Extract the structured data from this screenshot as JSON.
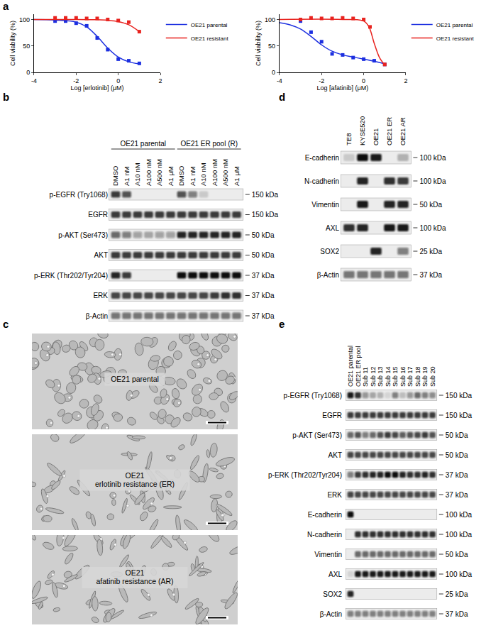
{
  "chart_data": [
    {
      "type": "scatter",
      "x_label": "Log [erlotinib] (μM)",
      "y_label": "Cell viability (%)",
      "xlim": [
        -4,
        2
      ],
      "xticks": [
        -4,
        -2,
        0,
        2
      ],
      "ylim": [
        0,
        110
      ],
      "yticks": [
        0,
        50,
        100
      ],
      "grid": false,
      "legend": "right",
      "marker": "square",
      "series": [
        {
          "name": "OE21 parental",
          "color": "#1c2fe0",
          "x": [
            -3,
            -2.5,
            -2,
            -1.5,
            -1,
            -0.5,
            0,
            0.5,
            1
          ],
          "values": [
            97,
            97,
            93,
            88,
            65,
            43,
            25,
            22,
            17
          ],
          "fit_x": [
            -4,
            -3,
            -2,
            -1.5,
            -1,
            -0.5,
            0,
            0.5,
            1
          ],
          "fit_values": [
            100,
            99,
            95,
            86,
            68,
            46,
            29,
            20,
            16
          ]
        },
        {
          "name": "OE21 resistant",
          "color": "#e8231f",
          "x": [
            -3,
            -2.5,
            -2,
            -1.5,
            -1,
            -0.5,
            0,
            0.5,
            1
          ],
          "values": [
            103,
            103,
            103,
            102,
            102,
            100,
            98,
            95,
            77
          ],
          "fit_x": [
            -4,
            -2,
            -1,
            -0.5,
            0,
            0.5,
            1
          ],
          "fit_values": [
            100,
            100,
            99.5,
            98.5,
            96,
            90,
            77
          ]
        }
      ]
    },
    {
      "type": "scatter",
      "x_label": "Log [afatinib] (μM)",
      "y_label": "Cell viability (%)",
      "xlim": [
        -4,
        2
      ],
      "xticks": [
        -4,
        -2,
        0,
        2
      ],
      "ylim": [
        0,
        110
      ],
      "yticks": [
        0,
        50,
        100
      ],
      "grid": false,
      "legend": "right",
      "marker": "square",
      "series": [
        {
          "name": "OE21 parental",
          "color": "#1c2fe0",
          "x": [
            -3,
            -2.5,
            -2,
            -1.5,
            -1,
            -0.5,
            0,
            0.5,
            1
          ],
          "values": [
            97,
            76,
            58,
            35,
            33,
            28,
            25,
            22,
            15
          ],
          "fit_x": [
            -4,
            -3.5,
            -3,
            -2.5,
            -2,
            -1.5,
            -1,
            -0.5,
            0,
            0.5,
            1
          ],
          "fit_values": [
            94,
            90,
            82,
            68,
            52,
            40,
            33,
            29,
            25,
            21,
            16
          ]
        },
        {
          "name": "OE21 resistant",
          "color": "#e8231f",
          "x": [
            -3,
            -2.5,
            -2,
            -1.5,
            -1,
            -0.5,
            0,
            0.3,
            1
          ],
          "values": [
            100,
            103,
            102,
            102,
            103,
            102,
            100,
            86,
            15
          ],
          "fit_x": [
            -4,
            -1,
            0,
            0.25,
            0.5,
            0.75,
            1
          ],
          "fit_values": [
            100,
            100,
            97,
            86,
            55,
            28,
            14
          ]
        }
      ]
    }
  ],
  "figure": {
    "panel_a": {
      "label": "a"
    },
    "panel_b": {
      "label": "b",
      "groups": [
        {
          "label": "OE21 parental",
          "lanes": [
            "DMSO",
            "A1 nM",
            "A10 nM",
            "A100 nM",
            "A500 nM",
            "A1 μM"
          ]
        },
        {
          "label": "OE21 ER pool (R)",
          "lanes": [
            "DMSO",
            "A1 nM",
            "A10 nM",
            "A100 nM",
            "A500 nM",
            "A1 μM"
          ]
        }
      ],
      "rows": [
        {
          "label": "p-EGFR (Try1068)",
          "kda": "150 kDa",
          "intensity": [
            0.8,
            0.7,
            0,
            0,
            0,
            0,
            0.7,
            0.5,
            0.15,
            0,
            0,
            0
          ]
        },
        {
          "label": "EGFR",
          "kda": "150 kDa",
          "intensity": [
            0.8,
            0.8,
            0.8,
            0.8,
            0.8,
            0.8,
            0.8,
            0.8,
            0.8,
            0.8,
            0.8,
            0.8
          ]
        },
        {
          "label": "p-AKT (Ser473)",
          "kda": "50 kDa",
          "intensity": [
            0.6,
            0.5,
            0.35,
            0.3,
            0.35,
            0.35,
            0.9,
            0.9,
            0.9,
            0.9,
            0.9,
            0.9
          ]
        },
        {
          "label": "AKT",
          "kda": "50 kDa",
          "intensity": [
            0.8,
            0.8,
            0.8,
            0.8,
            0.8,
            0.8,
            0.8,
            0.8,
            0.8,
            0.8,
            0.8,
            0.8
          ]
        },
        {
          "label": "p-ERK (Thr202/Tyr204)",
          "kda": "37 kDa",
          "intensity": [
            0.9,
            0.8,
            0,
            0,
            0,
            0,
            1,
            1,
            1,
            1,
            1,
            1
          ]
        },
        {
          "label": "ERK",
          "kda": "37 kDa",
          "intensity": [
            0.75,
            0.75,
            0.75,
            0.75,
            0.75,
            0.75,
            0.75,
            0.75,
            0.75,
            0.8,
            0.85,
            0.85
          ]
        },
        {
          "label": "β-Actin",
          "kda": "37 kDa",
          "intensity": [
            0.55,
            0.55,
            0.55,
            0.55,
            0.55,
            0.55,
            0.55,
            0.55,
            0.55,
            0.55,
            0.55,
            0.55
          ]
        }
      ]
    },
    "panel_c": {
      "label": "c",
      "images": [
        {
          "lines": [
            "OE21 parental"
          ]
        },
        {
          "lines": [
            "OE21",
            "erlotinib resistance (ER)"
          ]
        },
        {
          "lines": [
            "OE21",
            "afatinib resistance (AR)"
          ]
        }
      ]
    },
    "panel_d": {
      "label": "d",
      "lanes": [
        "TE8",
        "KYSE520",
        "OE21",
        "OE21 ER",
        "OE21 AR"
      ],
      "rows": [
        {
          "label": "E-cadherin",
          "kda": "100 kDa",
          "intensity": [
            0.15,
            1,
            0.95,
            0,
            0.25
          ]
        },
        {
          "label": "N-cadherin",
          "kda": "100 kDa",
          "intensity": [
            0,
            0.9,
            0,
            0.85,
            0.8
          ]
        },
        {
          "label": "Vimentin",
          "kda": "50 kDa",
          "intensity": [
            0,
            0.95,
            0,
            0.9,
            0.9
          ]
        },
        {
          "label": "AXL",
          "kda": "100 kDa",
          "intensity": [
            0.85,
            0.9,
            0,
            0.95,
            0.95
          ]
        },
        {
          "label": "SOX2",
          "kda": "25 kDa",
          "intensity": [
            0,
            0,
            0.9,
            0,
            0.5
          ]
        },
        {
          "label": "β-Actin",
          "kda": "37 kDa",
          "intensity": [
            0.55,
            0.55,
            0.55,
            0.55,
            0.55
          ]
        }
      ]
    },
    "panel_e": {
      "label": "e",
      "lanes": [
        "OE21 parental",
        "OE21 ER pool",
        "Sub 11",
        "Sub 12",
        "Sub 13",
        "Sub 14",
        "Sub 15",
        "Sub 16",
        "Sub 17",
        "Sub 18",
        "Sub 19",
        "Sub 20"
      ],
      "rows": [
        {
          "label": "p-EGFR (Try1068)",
          "kda": "150 kDa",
          "intensity": [
            0.95,
            0.85,
            0.4,
            0.3,
            0.25,
            0.1,
            0.5,
            0.2,
            0.4,
            0.6,
            0.5,
            0.45
          ]
        },
        {
          "label": "EGFR",
          "kda": "150 kDa",
          "intensity": [
            0.8,
            0.8,
            0.8,
            0.8,
            0.8,
            0.8,
            0.8,
            0.8,
            0.8,
            0.8,
            0.8,
            0.8
          ]
        },
        {
          "label": "p-AKT (Ser473)",
          "kda": "50 kDa",
          "intensity": [
            0.6,
            0.7,
            0.5,
            0.6,
            0.7,
            0.8,
            0.75,
            0.65,
            0.7,
            0.75,
            0.8,
            0.7
          ]
        },
        {
          "label": "AKT",
          "kda": "50 kDa",
          "intensity": [
            0.75,
            0.75,
            0.75,
            0.75,
            0.75,
            0.75,
            0.75,
            0.75,
            0.75,
            0.75,
            0.75,
            0.75
          ]
        },
        {
          "label": "p-ERK (Thr202/Tyr204)",
          "kda": "37 kDa",
          "intensity": [
            0.5,
            0.8,
            0.85,
            0.9,
            0.9,
            1,
            1,
            0.9,
            0.85,
            0.85,
            0.9,
            0.85
          ]
        },
        {
          "label": "ERK",
          "kda": "37 kDa",
          "intensity": [
            0.75,
            0.75,
            0.75,
            0.75,
            0.75,
            0.75,
            0.75,
            0.75,
            0.75,
            0.75,
            0.75,
            0.75
          ]
        },
        {
          "label": "E-cadherin",
          "kda": "100 kDa",
          "intensity": [
            1,
            0,
            0,
            0,
            0,
            0,
            0,
            0,
            0,
            0,
            0,
            0
          ]
        },
        {
          "label": "N-cadherin",
          "kda": "100 kDa",
          "intensity": [
            0,
            0.85,
            0.85,
            0.85,
            0.85,
            0.85,
            0.85,
            0.85,
            0.85,
            0.85,
            0.85,
            0.85
          ]
        },
        {
          "label": "Vimentin",
          "kda": "50 kDa",
          "intensity": [
            0,
            0.6,
            0.6,
            0.6,
            0.6,
            0.6,
            0.6,
            0.6,
            0.6,
            0.6,
            0.6,
            0.6
          ]
        },
        {
          "label": "AXL",
          "kda": "100 kDa",
          "intensity": [
            0.1,
            0.95,
            0.95,
            0.95,
            0.95,
            0.95,
            0.95,
            0.95,
            0.95,
            0.95,
            0.95,
            0.95
          ]
        },
        {
          "label": "SOX2",
          "kda": "25 kDa",
          "intensity": [
            0.9,
            0,
            0,
            0,
            0,
            0,
            0,
            0,
            0,
            0,
            0,
            0
          ]
        },
        {
          "label": "β-Actin",
          "kda": "37 kDa",
          "intensity": [
            0.5,
            0.5,
            0.5,
            0.5,
            0.5,
            0.5,
            0.5,
            0.5,
            0.5,
            0.5,
            0.5,
            0.5
          ]
        }
      ]
    }
  }
}
